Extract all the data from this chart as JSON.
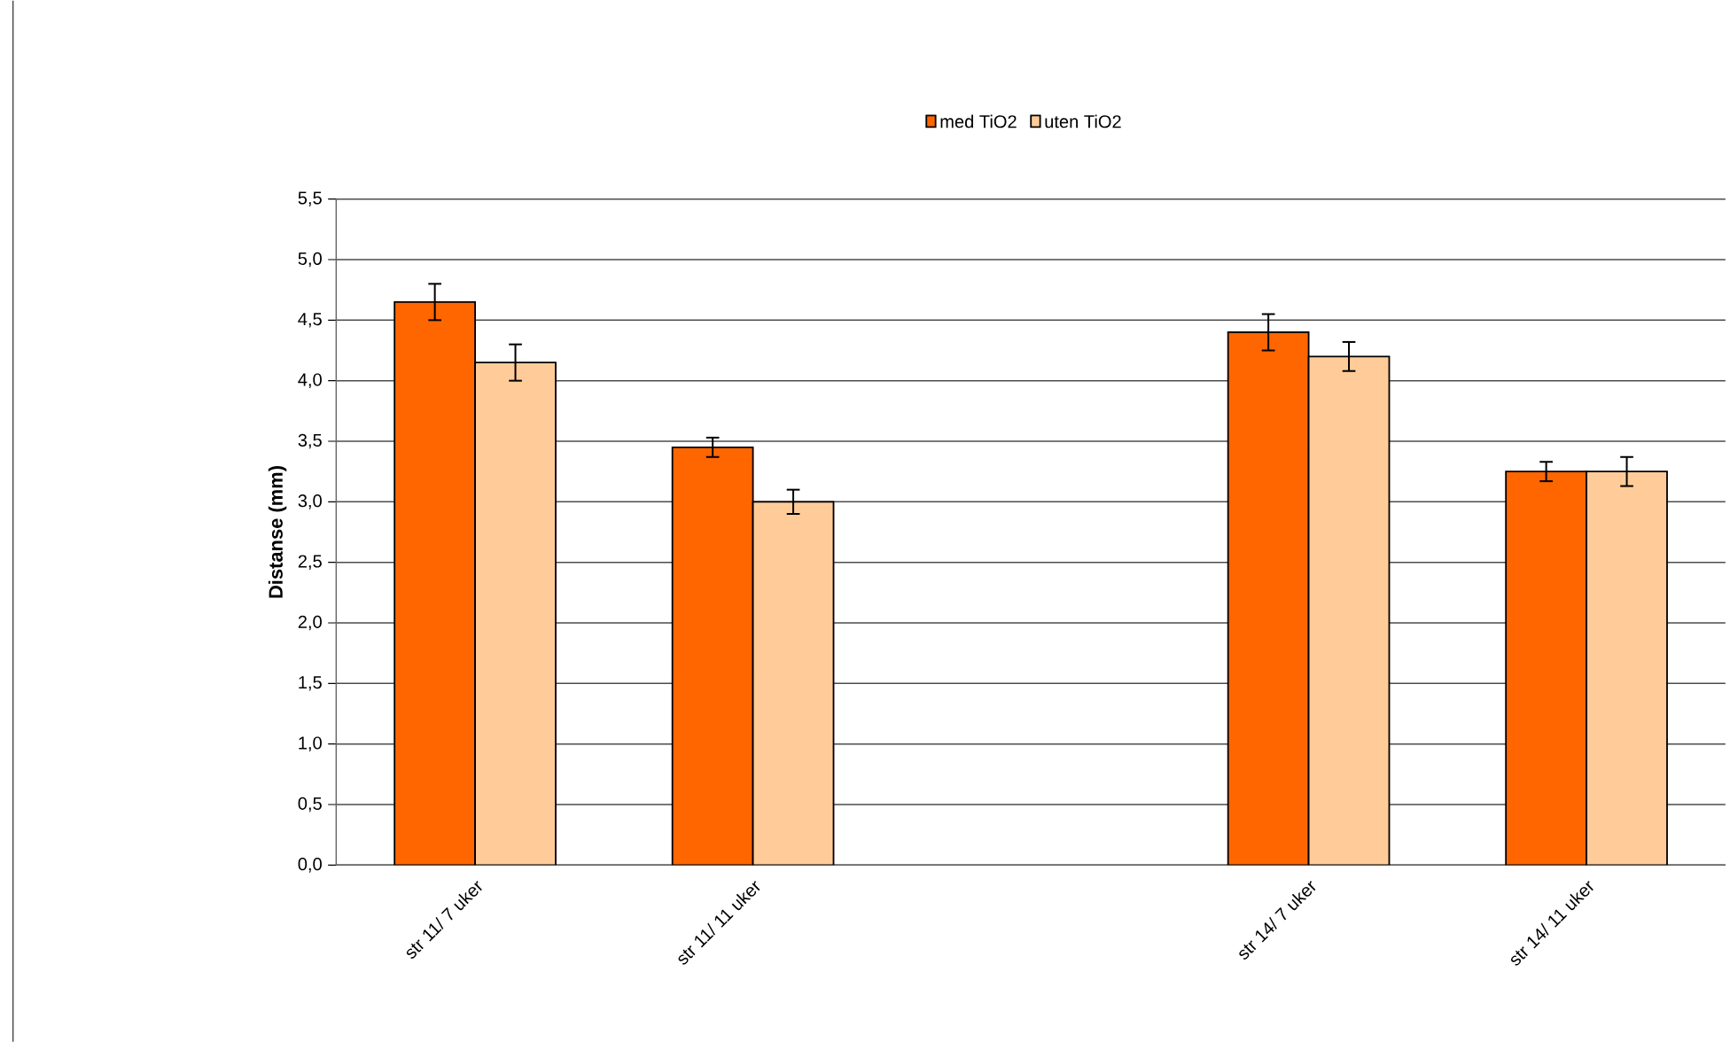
{
  "chart_data": {
    "type": "bar",
    "ylabel": "Distanse (mm)",
    "categories": [
      "str 11/ 7 uker",
      "str 11/ 11 uker",
      null,
      "str 14/ 7 uker",
      "str 14/ 11 uker"
    ],
    "series": [
      {
        "name": "med TiO2",
        "color": "#ff6600",
        "values": [
          4.65,
          3.45,
          null,
          4.4,
          3.25
        ],
        "errors": [
          0.15,
          0.08,
          null,
          0.15,
          0.08
        ]
      },
      {
        "name": "uten TiO2",
        "color": "#ffcc99",
        "values": [
          4.15,
          3.0,
          null,
          4.2,
          3.25
        ],
        "errors": [
          0.15,
          0.1,
          null,
          0.12,
          0.12
        ]
      }
    ],
    "ylim": [
      0,
      5.5
    ],
    "yticks": [
      {
        "value": 0,
        "label": "0,0"
      },
      {
        "value": 0.5,
        "label": "0,5"
      },
      {
        "value": 1,
        "label": "1,0"
      },
      {
        "value": 1.5,
        "label": "1,5"
      },
      {
        "value": 2,
        "label": "2,0"
      },
      {
        "value": 2.5,
        "label": "2,5"
      },
      {
        "value": 3,
        "label": "3,0"
      },
      {
        "value": 3.5,
        "label": "3,5"
      },
      {
        "value": 4,
        "label": "4,0"
      },
      {
        "value": 4.5,
        "label": "4,5"
      },
      {
        "value": 5,
        "label": "5,0"
      },
      {
        "value": 5.5,
        "label": "5,5"
      }
    ],
    "grid": "y",
    "legend": "top"
  }
}
